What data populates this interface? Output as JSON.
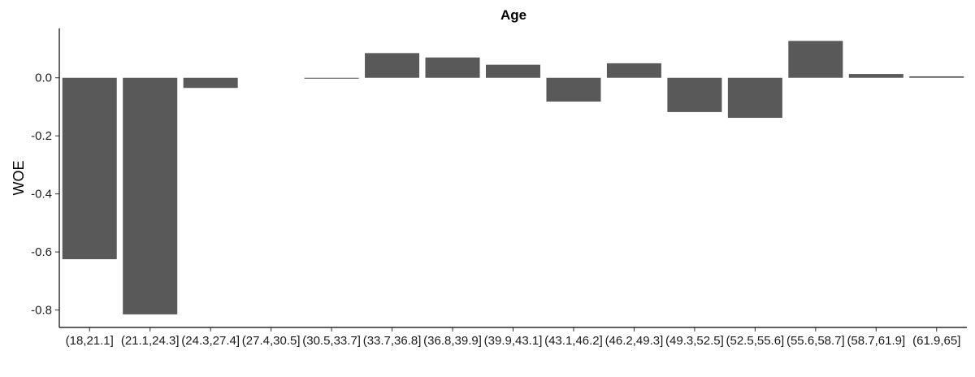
{
  "chart_data": {
    "type": "bar",
    "title": "Age",
    "xlabel": "",
    "ylabel": "WOE",
    "categories": [
      "(18,21.1]",
      "(21.1,24.3]",
      "(24.3,27.4]",
      "(27.4,30.5]",
      "(30.5,33.7]",
      "(33.7,36.8]",
      "(36.8,39.9]",
      "(39.9,43.1]",
      "(43.1,46.2]",
      "(46.2,49.3]",
      "(49.3,52.5]",
      "(52.5,55.6]",
      "(55.6,58.7]",
      "(58.7,61.9]",
      "(61.9,65]"
    ],
    "values": [
      -0.625,
      -0.815,
      -0.035,
      0.0,
      -0.003,
      0.085,
      0.07,
      0.045,
      -0.082,
      0.05,
      -0.118,
      -0.138,
      0.127,
      0.013,
      0.005
    ],
    "ylim": [
      -0.86,
      0.17
    ],
    "yticks": [
      0.0,
      -0.2,
      -0.4,
      -0.6,
      -0.8
    ],
    "ytick_labels": [
      "0.0",
      "-0.2",
      "-0.4",
      "-0.6",
      "-0.8"
    ],
    "grid": false,
    "bar_color": "#595959"
  }
}
